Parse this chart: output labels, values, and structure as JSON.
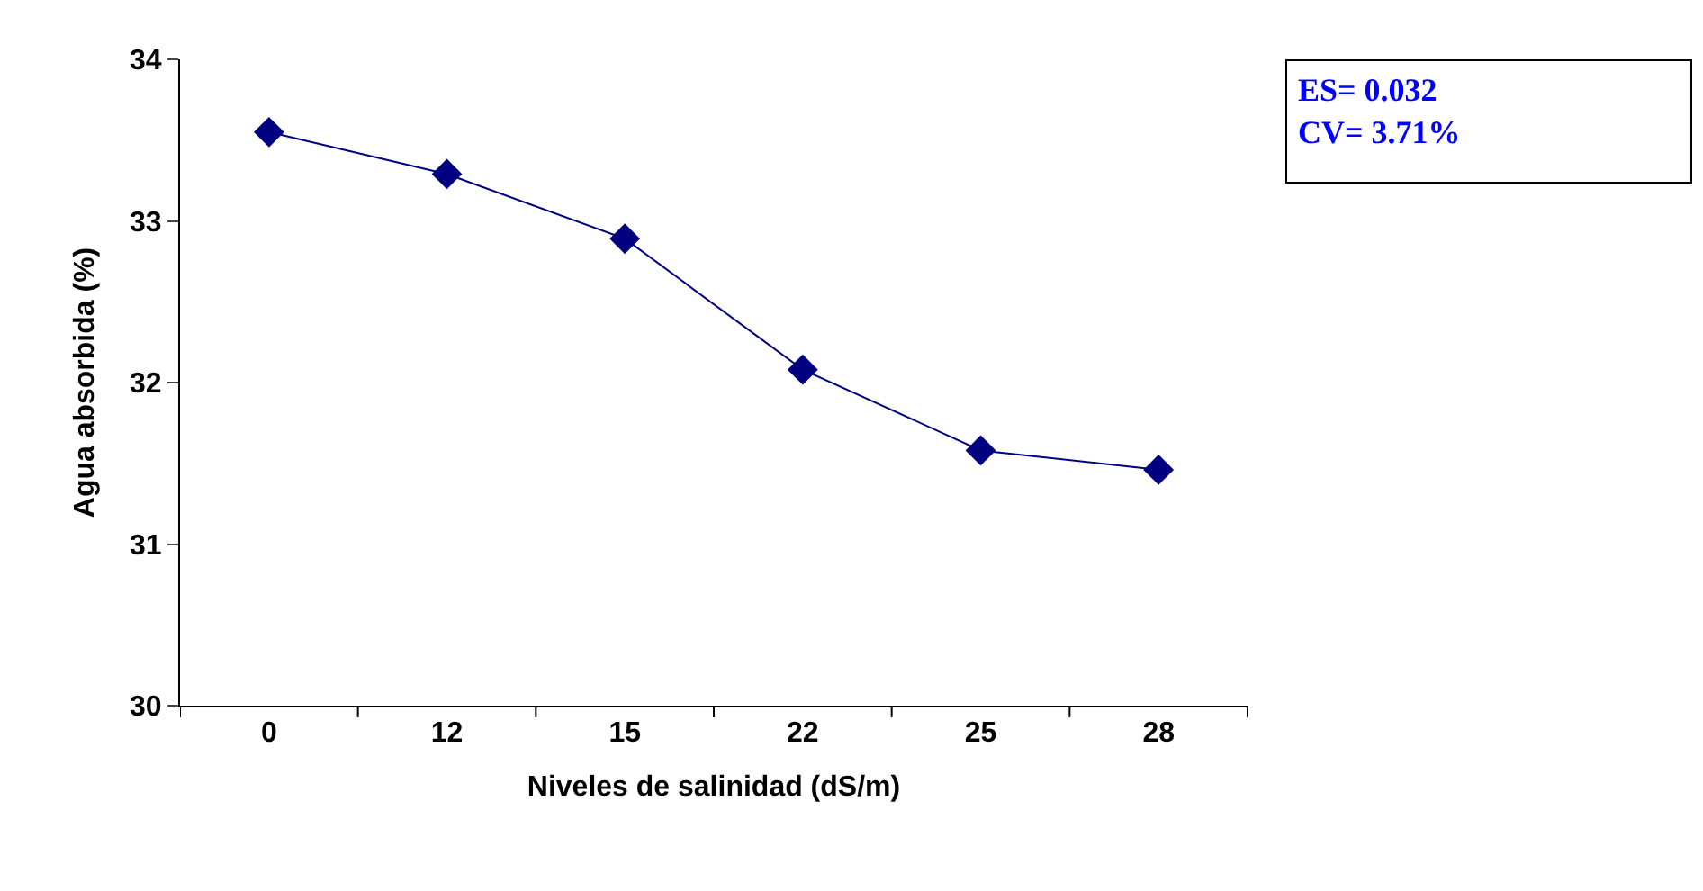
{
  "chart_data": {
    "type": "line",
    "xlabel": "Niveles de salinidad (dS/m)",
    "ylabel": "Agua absorbida (%)",
    "categories": [
      "0",
      "12",
      "15",
      "22",
      "25",
      "28"
    ],
    "series": [
      {
        "color": "#000080",
        "values": [
          33.55,
          33.29,
          32.89,
          32.08,
          31.58,
          31.46
        ]
      }
    ],
    "ylim": [
      30,
      34
    ],
    "yticks": [
      30,
      31,
      32,
      33,
      34
    ],
    "marker": "diamond",
    "line_style": "solid",
    "annotations": [
      "ES= 0.032",
      "CV= 3.71%"
    ]
  }
}
